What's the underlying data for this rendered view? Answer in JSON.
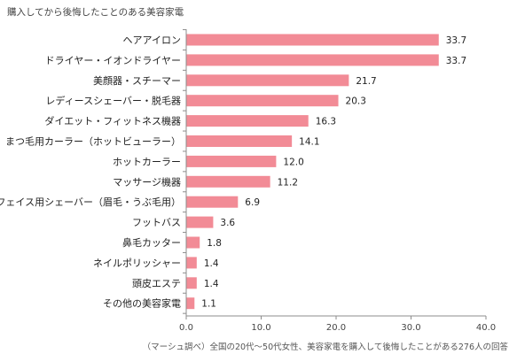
{
  "chart_data": {
    "type": "bar",
    "orientation": "horizontal",
    "title": "購入してから後悔したことのある美容家電",
    "categories": [
      "ヘアアイロン",
      "ドライヤー・イオンドライヤー",
      "美顔器・スチーマー",
      "レディースシェーバー・脱毛器",
      "ダイエット・フィットネス機器",
      "まつ毛用カーラー（ホットビューラー）",
      "ホットカーラー",
      "マッサージ機器",
      "フェイス用シェーバー（眉毛・うぶ毛用）",
      "フットバス",
      "鼻毛カッター",
      "ネイルポリッシャー",
      "頭皮エステ",
      "その他の美容家電"
    ],
    "values": [
      33.7,
      33.7,
      21.7,
      20.3,
      16.3,
      14.1,
      12.0,
      11.2,
      6.9,
      3.6,
      1.8,
      1.4,
      1.4,
      1.1
    ],
    "value_labels": [
      "33.7",
      "33.7",
      "21.7",
      "20.3",
      "16.3",
      "14.1",
      "12.0",
      "11.2",
      "6.9",
      "3.6",
      "1.8",
      "1.4",
      "1.4",
      "1.1"
    ],
    "xlim": [
      0,
      40
    ],
    "xticks": [
      0,
      10,
      20,
      30,
      40
    ],
    "xtick_labels": [
      "0.0",
      "10.0",
      "20.0",
      "30.0",
      "40.0"
    ],
    "grid": false,
    "bar_color": "#f28b96",
    "note": "（マーシュ調べ）全国の20代～50代女性、美容家電を購入して後悔したことがある276人の回答"
  }
}
